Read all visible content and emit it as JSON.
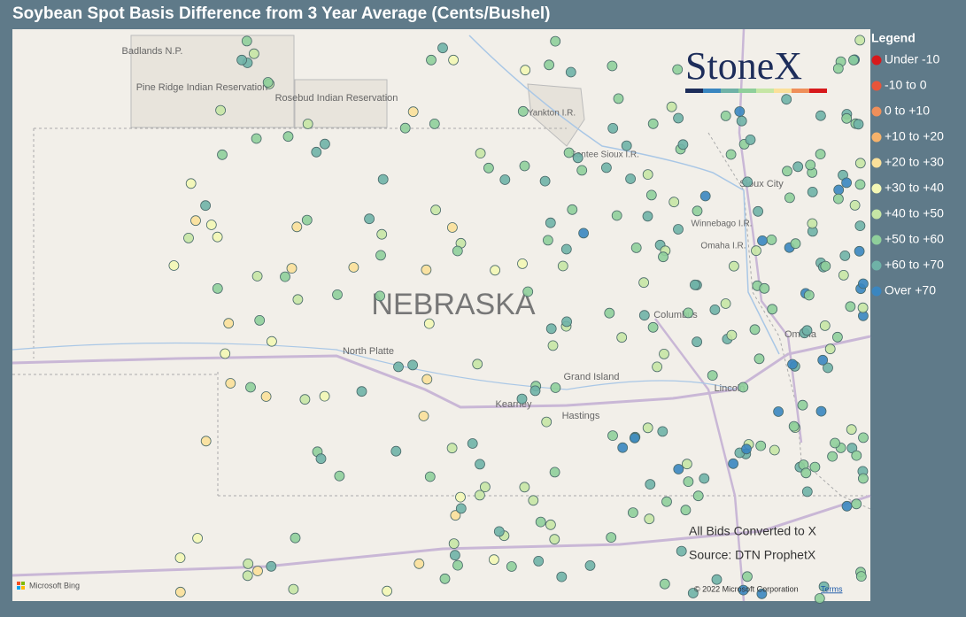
{
  "title": "Soybean Spot Basis Difference from 3 Year Average (Cents/Bushel)",
  "brand": "StoneX",
  "legend": {
    "title": "Legend",
    "items": [
      {
        "label": "Under -10",
        "color": "#d7191c"
      },
      {
        "label": "-10 to 0",
        "color": "#e8553a"
      },
      {
        "label": "0 to +10",
        "color": "#ef8f5a"
      },
      {
        "label": "+10 to +20",
        "color": "#f6b26b"
      },
      {
        "label": "+20 to +30",
        "color": "#fbe09a"
      },
      {
        "label": "+30 to +40",
        "color": "#f3f7b5"
      },
      {
        "label": "+40 to +50",
        "color": "#c6e6a5"
      },
      {
        "label": "+50 to +60",
        "color": "#8fcf9b"
      },
      {
        "label": "+60 to +70",
        "color": "#6fb2a7"
      },
      {
        "label": "Over +70",
        "color": "#3a86c0"
      }
    ]
  },
  "map_labels": [
    "Badlands N.P.",
    "Pine Ridge Indian Reservation",
    "Rosebud Indian Reservation",
    "Yankton I.R.",
    "Santee Sioux I.R.",
    "Sioux City",
    "Winnebago I.R.",
    "Omaha I.R.",
    "NEBRASKA",
    "Columbus",
    "Omaha",
    "North Platte",
    "Grand Island",
    "Kearney",
    "Hastings",
    "Lincoln"
  ],
  "notes": [
    "All Bids Converted to X",
    "Source: DTN ProphetX"
  ],
  "attribution": {
    "bing": "Microsoft Bing",
    "copyright": "© 2022 Microsoft Corporation",
    "terms": "Terms"
  }
}
